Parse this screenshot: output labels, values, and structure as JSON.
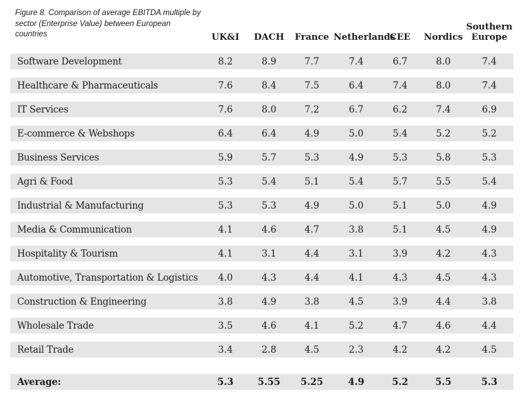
{
  "figure": {
    "caption": "Figure 8. Comparison of average EBITDA multiple by sector (Enterprise Value) between European countries"
  },
  "chart_data": {
    "type": "table",
    "title": "Figure 8. Comparison of average EBITDA multiple by sector (Enterprise Value) between European countries",
    "columns": [
      "UK&I",
      "DACH",
      "France",
      "Netherlands",
      "CEE",
      "Nordics",
      "Southern Europe"
    ],
    "rows": [
      {
        "sector": "Software Development",
        "values": [
          "8.2",
          "8.9",
          "7.7",
          "7.4",
          "6.7",
          "8.0",
          "7.4"
        ]
      },
      {
        "sector": "Healthcare & Pharmaceuticals",
        "values": [
          "7.6",
          "8.4",
          "7.5",
          "6.4",
          "7.4",
          "8.0",
          "7.4"
        ]
      },
      {
        "sector": "IT Services",
        "values": [
          "7.6",
          "8.0",
          "7.2",
          "6.7",
          "6.2",
          "7.4",
          "6.9"
        ]
      },
      {
        "sector": "E-commerce & Webshops",
        "values": [
          "6.4",
          "6.4",
          "4.9",
          "5.0",
          "5.4",
          "5.2",
          "5.2"
        ]
      },
      {
        "sector": "Business Services",
        "values": [
          "5.9",
          "5.7",
          "5.3",
          "4.9",
          "5.3",
          "5.8",
          "5.3"
        ]
      },
      {
        "sector": "Agri & Food",
        "values": [
          "5.3",
          "5.4",
          "5.1",
          "5.4",
          "5.7",
          "5.5",
          "5.4"
        ]
      },
      {
        "sector": "Industrial & Manufacturing",
        "values": [
          "5.3",
          "5.3",
          "4.9",
          "5.0",
          "5.1",
          "5.0",
          "4.9"
        ]
      },
      {
        "sector": "Media & Communication",
        "values": [
          "4.1",
          "4.6",
          "4.7",
          "3.8",
          "5.1",
          "4.5",
          "4.9"
        ]
      },
      {
        "sector": "Hospitality & Tourism",
        "values": [
          "4.1",
          "3.1",
          "4.4",
          "3.1",
          "3.9",
          "4.2",
          "4.3"
        ]
      },
      {
        "sector": "Automotive, Transportation & Logistics",
        "values": [
          "4.0",
          "4.3",
          "4.4",
          "4.1",
          "4.3",
          "4.5",
          "4.3"
        ]
      },
      {
        "sector": "Construction & Engineering",
        "values": [
          "3.8",
          "4.9",
          "3.8",
          "4.5",
          "3.9",
          "4.4",
          "3.8"
        ]
      },
      {
        "sector": "Wholesale Trade",
        "values": [
          "3.5",
          "4.6",
          "4.1",
          "5.2",
          "4.7",
          "4.6",
          "4.4"
        ]
      },
      {
        "sector": "Retail Trade",
        "values": [
          "3.4",
          "2.8",
          "4.5",
          "2.3",
          "4.2",
          "4.2",
          "4.5"
        ]
      }
    ],
    "footer": {
      "label": "Average:",
      "values": [
        "5.3",
        "5.55",
        "5.25",
        "4.9",
        "5.2",
        "5.5",
        "5.3"
      ]
    },
    "legend_position": "none",
    "grid": "off"
  },
  "colors": {
    "row_background": "#e5e5e3",
    "text": "#1d1d1b",
    "page_background": "#ffffff"
  }
}
